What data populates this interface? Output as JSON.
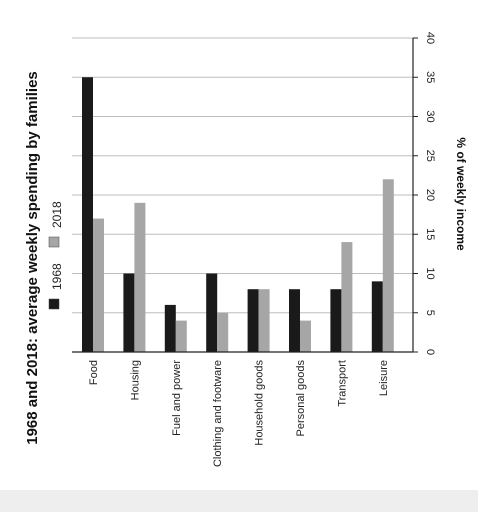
{
  "chart_data": {
    "type": "bar",
    "orientation": "rotated-vertical",
    "title": "1968 and 2018: average weekly spending by families",
    "ylabel": "% of weekly income",
    "xlabel": "",
    "ylim": [
      0,
      40
    ],
    "yticks": [
      0,
      5,
      10,
      15,
      20,
      25,
      30,
      35,
      40
    ],
    "grid": true,
    "legend_placement": "left",
    "categories": [
      "Food",
      "Housing",
      "Fuel and power",
      "Clothing and footware",
      "Household goods",
      "Personal goods",
      "Transport",
      "Leisure"
    ],
    "series": [
      {
        "name": "1968",
        "color": "#1a1a1a",
        "values": [
          35,
          10,
          6,
          10,
          8,
          8,
          8,
          9
        ]
      },
      {
        "name": "2018",
        "color": "#a6a6a6",
        "values": [
          17,
          19,
          4,
          5,
          8,
          4,
          14,
          22
        ]
      }
    ]
  }
}
